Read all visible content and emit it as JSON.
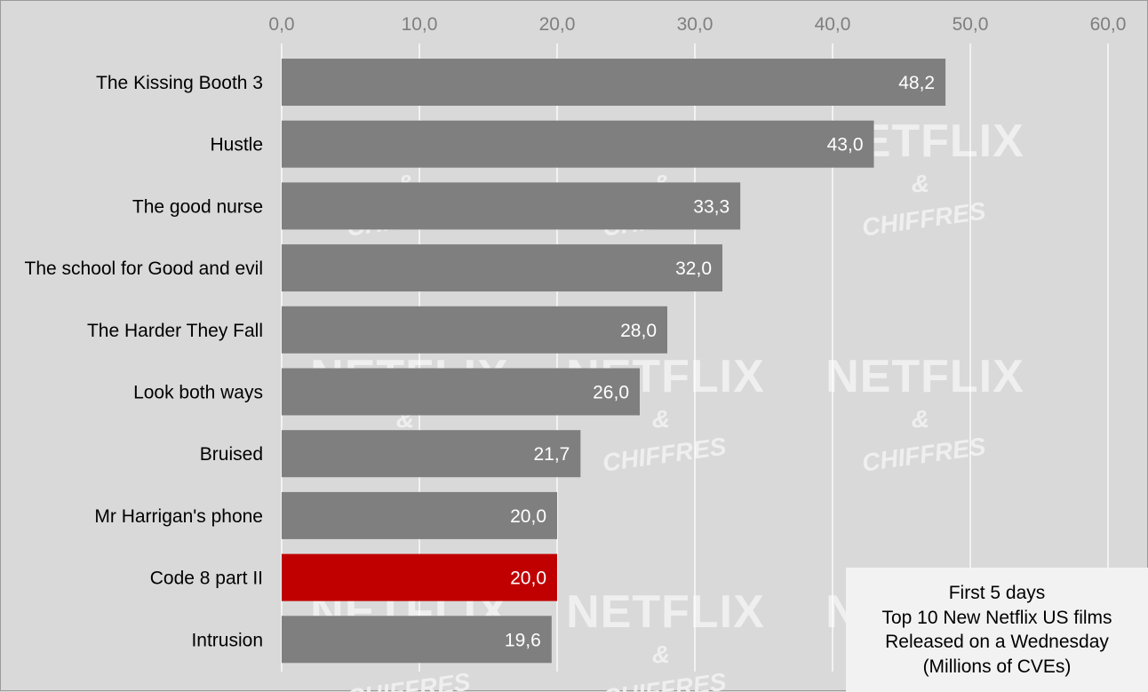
{
  "chart_data": {
    "type": "bar",
    "orientation": "horizontal",
    "categories": [
      "The Kissing Booth 3",
      "Hustle",
      "The good nurse",
      "The school for Good and evil",
      "The Harder They Fall",
      "Look both ways",
      "Bruised",
      "Mr Harrigan's phone",
      "Code 8 part II",
      "Intrusion"
    ],
    "values": [
      48.2,
      43.0,
      33.3,
      32.0,
      28.0,
      26.0,
      21.7,
      20.0,
      20.0,
      19.6
    ],
    "value_labels": [
      "48,2",
      "43,0",
      "33,3",
      "32,0",
      "28,0",
      "26,0",
      "21,7",
      "20,0",
      "20,0",
      "19,6"
    ],
    "x_ticks": [
      "0,0",
      "10,0",
      "20,0",
      "30,0",
      "40,0",
      "50,0",
      "60,0"
    ],
    "xlim": [
      0,
      60
    ],
    "axis_position": "top",
    "grid": true,
    "colors": {
      "bar": "#7f7f7f",
      "highlight": "#c00000",
      "highlight_category": "Code 8 part II",
      "background": "#d9d9d9",
      "grid": "#ffffff"
    },
    "info_box": [
      "First 5 days",
      "Top 10 New Netflix US films",
      "Released on a Wednesday",
      "(Millions of CVEs)"
    ]
  },
  "watermark": {
    "brand": "NETFLIX",
    "ampersand": "&",
    "sub": "CHIFFRES"
  }
}
